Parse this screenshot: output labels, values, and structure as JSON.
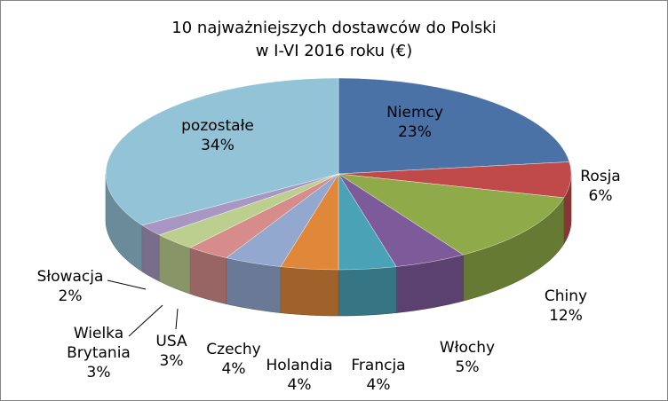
{
  "chart_data": {
    "type": "pie",
    "title_lines": [
      "10 najważniejszych dostawców do Polski",
      "w I-VI 2016 roku (€)"
    ],
    "slices": [
      {
        "label": "Niemcy",
        "label_lines": [
          "Niemcy"
        ],
        "value": 23,
        "value_text": "23%",
        "color": "#4a72a6"
      },
      {
        "label": "Rosja",
        "label_lines": [
          "Rosja"
        ],
        "value": 6,
        "value_text": "6%",
        "color": "#c0494a"
      },
      {
        "label": "Chiny",
        "label_lines": [
          "Chiny"
        ],
        "value": 12,
        "value_text": "12%",
        "color": "#8faa48"
      },
      {
        "label": "Włochy",
        "label_lines": [
          "Włochy"
        ],
        "value": 5,
        "value_text": "5%",
        "color": "#7d5a9a"
      },
      {
        "label": "Francja",
        "label_lines": [
          "Francja"
        ],
        "value": 4,
        "value_text": "4%",
        "color": "#4aa2b7"
      },
      {
        "label": "Holandia",
        "label_lines": [
          "Holandia"
        ],
        "value": 4,
        "value_text": "4%",
        "color": "#e0873a"
      },
      {
        "label": "Czechy",
        "label_lines": [
          "Czechy"
        ],
        "value": 4,
        "value_text": "4%",
        "color": "#93a8cf"
      },
      {
        "label": "USA",
        "label_lines": [
          "USA"
        ],
        "value": 3,
        "value_text": "3%",
        "color": "#d58c8b"
      },
      {
        "label": "Wielka Brytania",
        "label_lines": [
          "Wielka",
          "Brytania"
        ],
        "value": 3,
        "value_text": "3%",
        "color": "#bccf8f"
      },
      {
        "label": "Słowacja",
        "label_lines": [
          "Słowacja"
        ],
        "value": 2,
        "value_text": "2%",
        "color": "#a897c2"
      },
      {
        "label": "pozostałe",
        "label_lines": [
          "pozostałe"
        ],
        "value": 34,
        "value_text": "34%",
        "color": "#93c3d6"
      }
    ],
    "start_angle": "12 o'clock",
    "direction": "clockwise",
    "style": "3d-tilted",
    "legend": "none"
  }
}
